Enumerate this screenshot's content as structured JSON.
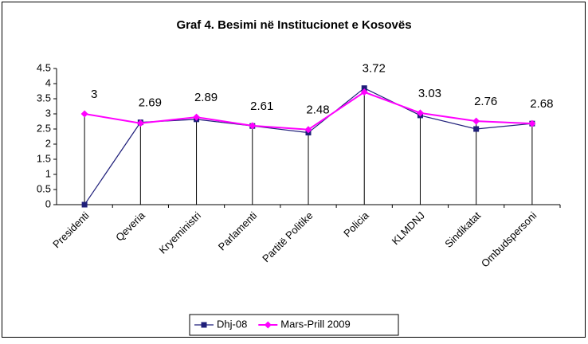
{
  "chart_data": {
    "type": "line",
    "title": "Graf 4. Besimi në Institucionet e Kosovës",
    "categories": [
      "Presidenti",
      "Qeveria",
      "Kryeministri",
      "Parlamenti",
      "Partitë Politike",
      "Policia",
      "KLMDNJ",
      "Sindikatat",
      "Ombudspersoni"
    ],
    "series": [
      {
        "name": "Dhj-08",
        "color": "#1f1f7a",
        "values": [
          0,
          2.72,
          2.82,
          2.6,
          2.38,
          3.85,
          2.95,
          2.5,
          2.68
        ]
      },
      {
        "name": "Mars-Prill 2009",
        "color": "#ff00ff",
        "values": [
          3,
          2.69,
          2.89,
          2.61,
          2.48,
          3.72,
          3.03,
          2.76,
          2.68
        ],
        "data_labels": true
      }
    ],
    "ylim": [
      0,
      4.5
    ],
    "yticks": [
      0,
      0.5,
      1,
      1.5,
      2,
      2.5,
      3,
      3.5,
      4,
      4.5
    ],
    "legend": "bottom",
    "drop_lines": true
  }
}
